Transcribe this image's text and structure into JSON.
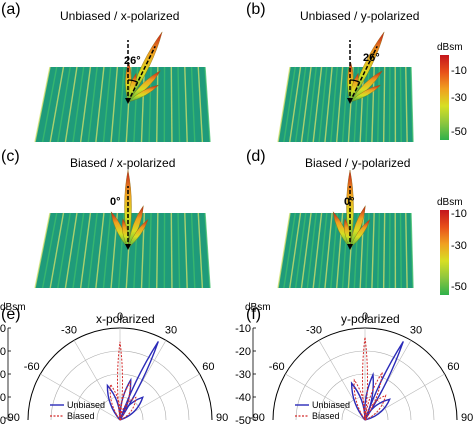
{
  "panels": [
    {
      "label": "(a)",
      "title": "Unbiased / x-polarized",
      "angle": "26°",
      "tilt": 26
    },
    {
      "label": "(b)",
      "title": "Unbiased / y-polarized",
      "angle": "26°",
      "tilt": 26
    },
    {
      "label": "(c)",
      "title": "Biased / x-polarized",
      "angle": "0°",
      "tilt": 0
    },
    {
      "label": "(d)",
      "title": "Biased / y-polarized",
      "angle": "0°",
      "tilt": 0
    }
  ],
  "colorbar": {
    "unit": "dBsm",
    "ticks": [
      "-10",
      "-30",
      "-50"
    ],
    "colors": [
      "#c4161c",
      "#f0a020",
      "#d7df23",
      "#2fb14b"
    ]
  },
  "polar_panels": [
    {
      "label": "(e)",
      "title": "x-polarized"
    },
    {
      "label": "(f)",
      "title": "y-polarized"
    }
  ],
  "polar_axis": {
    "unit": "dBsm",
    "r_ticks": [
      "-10",
      "-20",
      "-30",
      "-40",
      "-50"
    ],
    "angle_ticks": [
      "-90",
      "-60",
      "-30",
      "0",
      "30",
      "60",
      "90"
    ]
  },
  "legend": {
    "unbiased": "Unbiased",
    "biased": "Biased"
  },
  "colors": {
    "unbiased": "#2b2bb8",
    "biased": "#d42a2a"
  },
  "chart_data": [
    {
      "type": "polar line",
      "title": "x-polarized",
      "r_unit": "dBsm",
      "r_range": [
        -50,
        -10
      ],
      "theta_range": [
        -90,
        90
      ],
      "series": [
        {
          "name": "Unbiased",
          "beams": [
            {
              "theta": 26,
              "r": -12
            },
            {
              "theta": 15,
              "r": -32
            },
            {
              "theta": -20,
              "r": -34
            },
            {
              "theta": 45,
              "r": -36
            }
          ]
        },
        {
          "name": "Biased",
          "beams": [
            {
              "theta": 0,
              "r": -16
            },
            {
              "theta": 15,
              "r": -33
            },
            {
              "theta": -15,
              "r": -34
            },
            {
              "theta": 35,
              "r": -38
            }
          ]
        }
      ]
    },
    {
      "type": "polar line",
      "title": "y-polarized",
      "r_unit": "dBsm",
      "r_range": [
        -50,
        -10
      ],
      "theta_range": [
        -90,
        90
      ],
      "series": [
        {
          "name": "Unbiased",
          "beams": [
            {
              "theta": 26,
              "r": -12
            },
            {
              "theta": 10,
              "r": -30
            },
            {
              "theta": -20,
              "r": -33
            },
            {
              "theta": 50,
              "r": -36
            }
          ]
        },
        {
          "name": "Biased",
          "beams": [
            {
              "theta": 0,
              "r": -14
            },
            {
              "theta": 20,
              "r": -28
            },
            {
              "theta": -15,
              "r": -32
            },
            {
              "theta": 40,
              "r": -36
            }
          ]
        }
      ]
    }
  ]
}
